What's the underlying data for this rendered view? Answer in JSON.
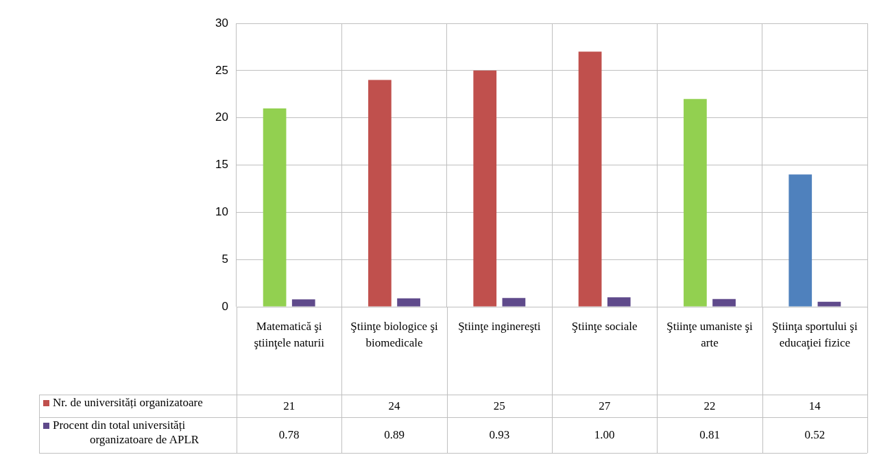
{
  "chart_data": {
    "type": "bar",
    "categories": [
      "Matematică şi ştiinţele naturii",
      "Ştiinţe biologice şi biomedicale",
      "Ştiinţe inginereşti",
      "Ştiinţe sociale",
      "Ştiinţe umaniste şi arte",
      "Ştiinţa sportului şi educaţiei fizice"
    ],
    "series": [
      {
        "name": "Nr. de universități organizatoare",
        "color": "#c0504d",
        "colors": [
          "#92d050",
          "#c0504d",
          "#c0504d",
          "#c0504d",
          "#92d050",
          "#4f81bd"
        ],
        "values": [
          21,
          24,
          25,
          27,
          22,
          14
        ],
        "value_labels": [
          "21",
          "24",
          "25",
          "27",
          "22",
          "14"
        ]
      },
      {
        "name": "Procent din total universități organizatoare de APLR",
        "color": "#5f4a8b",
        "values": [
          0.78,
          0.89,
          0.93,
          1.0,
          0.81,
          0.52
        ],
        "value_labels": [
          "0.78",
          "0.89",
          "0.93",
          "1.00",
          "0.81",
          "0.52"
        ]
      }
    ],
    "ylim": [
      0,
      30
    ],
    "yticks": [
      0,
      5,
      10,
      15,
      20,
      25,
      30
    ],
    "grid": true,
    "legend": "bottom"
  }
}
